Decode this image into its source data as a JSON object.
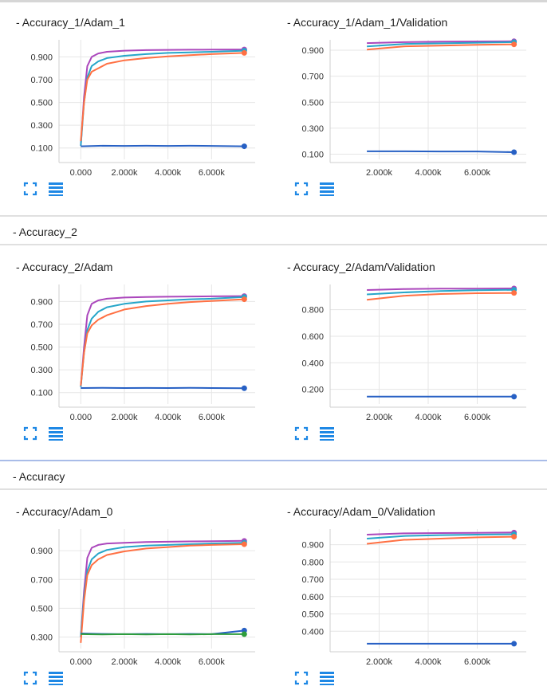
{
  "groups": [
    {
      "title": "- Accuracy_2"
    },
    {
      "title": "- Accuracy"
    }
  ],
  "colors": {
    "purple": "#ab47bc",
    "teal": "#26a6c9",
    "orange": "#ff7043",
    "blue": "#2760c4",
    "green": "#2e9d3c"
  },
  "icons": [
    "fullscreen-icon",
    "toggle-data-icon"
  ],
  "chart_data": [
    {
      "type": "line",
      "title": "- Accuracy_1/Adam_1",
      "xlim": [
        -1000,
        8000
      ],
      "ylim": [
        0.0,
        1.05
      ],
      "xticks": [
        0,
        2000,
        4000,
        6000
      ],
      "xticklabels": [
        "0.000",
        "2.000k",
        "4.000k",
        "6.000k"
      ],
      "yticks": [
        0.1,
        0.3,
        0.5,
        0.7,
        0.9
      ],
      "yticklabels": [
        "0.100",
        "0.300",
        "0.500",
        "0.700",
        "0.900"
      ],
      "grid": true,
      "series": [
        {
          "color": "purple",
          "x": [
            0,
            150,
            300,
            500,
            800,
            1200,
            2000,
            3000,
            4000,
            5000,
            6000,
            7500
          ],
          "y": [
            0.12,
            0.55,
            0.82,
            0.9,
            0.93,
            0.945,
            0.955,
            0.96,
            0.962,
            0.963,
            0.964,
            0.965
          ]
        },
        {
          "color": "teal",
          "x": [
            0,
            150,
            300,
            500,
            800,
            1200,
            2000,
            3000,
            4000,
            5000,
            6000,
            7500
          ],
          "y": [
            0.12,
            0.5,
            0.72,
            0.82,
            0.86,
            0.89,
            0.91,
            0.925,
            0.935,
            0.94,
            0.945,
            0.955
          ]
        },
        {
          "color": "orange",
          "x": [
            0,
            150,
            300,
            500,
            800,
            1200,
            2000,
            3000,
            4000,
            5000,
            6000,
            7500
          ],
          "y": [
            0.16,
            0.5,
            0.7,
            0.77,
            0.8,
            0.84,
            0.87,
            0.89,
            0.905,
            0.915,
            0.925,
            0.935
          ]
        },
        {
          "color": "blue",
          "x": [
            0,
            1000,
            2000,
            3000,
            4000,
            5000,
            6000,
            7500
          ],
          "y": [
            0.115,
            0.12,
            0.118,
            0.12,
            0.118,
            0.12,
            0.118,
            0.115
          ]
        }
      ]
    },
    {
      "type": "line",
      "title": "- Accuracy_1/Adam_1/Validation",
      "xlim": [
        0,
        8000
      ],
      "ylim": [
        0.06,
        0.98
      ],
      "xticks": [
        2000,
        4000,
        6000
      ],
      "xticklabels": [
        "2.000k",
        "4.000k",
        "6.000k"
      ],
      "yticks": [
        0.1,
        0.3,
        0.5,
        0.7,
        0.9
      ],
      "yticklabels": [
        "0.100",
        "0.300",
        "0.500",
        "0.700",
        "0.900"
      ],
      "grid": true,
      "series": [
        {
          "color": "purple",
          "x": [
            1500,
            3000,
            4500,
            6000,
            7500
          ],
          "y": [
            0.955,
            0.962,
            0.966,
            0.968,
            0.969
          ]
        },
        {
          "color": "teal",
          "x": [
            1500,
            3000,
            4500,
            6000,
            7500
          ],
          "y": [
            0.93,
            0.948,
            0.953,
            0.958,
            0.962
          ]
        },
        {
          "color": "orange",
          "x": [
            1500,
            3000,
            4500,
            6000,
            7500
          ],
          "y": [
            0.905,
            0.93,
            0.936,
            0.942,
            0.945
          ]
        },
        {
          "color": "blue",
          "x": [
            1500,
            3000,
            4500,
            6000,
            7500
          ],
          "y": [
            0.122,
            0.122,
            0.121,
            0.121,
            0.115
          ]
        }
      ]
    },
    {
      "type": "line",
      "title": "- Accuracy_2/Adam",
      "xlim": [
        -1000,
        8000
      ],
      "ylim": [
        0.0,
        1.05
      ],
      "xticks": [
        0,
        2000,
        4000,
        6000
      ],
      "xticklabels": [
        "0.000",
        "2.000k",
        "4.000k",
        "6.000k"
      ],
      "yticks": [
        0.1,
        0.3,
        0.5,
        0.7,
        0.9
      ],
      "yticklabels": [
        "0.100",
        "0.300",
        "0.500",
        "0.700",
        "0.900"
      ],
      "grid": true,
      "series": [
        {
          "color": "purple",
          "x": [
            0,
            150,
            300,
            500,
            800,
            1200,
            2000,
            3000,
            4000,
            5000,
            6000,
            7500
          ],
          "y": [
            0.15,
            0.5,
            0.78,
            0.88,
            0.91,
            0.925,
            0.935,
            0.94,
            0.942,
            0.944,
            0.946,
            0.948
          ]
        },
        {
          "color": "teal",
          "x": [
            0,
            150,
            300,
            500,
            800,
            1200,
            2000,
            3000,
            4000,
            5000,
            6000,
            7500
          ],
          "y": [
            0.15,
            0.45,
            0.65,
            0.75,
            0.81,
            0.85,
            0.88,
            0.9,
            0.91,
            0.92,
            0.925,
            0.94
          ]
        },
        {
          "color": "orange",
          "x": [
            0,
            150,
            300,
            500,
            800,
            1200,
            2000,
            3000,
            4000,
            5000,
            6000,
            7500
          ],
          "y": [
            0.16,
            0.45,
            0.62,
            0.69,
            0.74,
            0.78,
            0.83,
            0.86,
            0.88,
            0.895,
            0.905,
            0.92
          ]
        },
        {
          "color": "blue",
          "x": [
            0,
            1000,
            2000,
            3000,
            4000,
            5000,
            6000,
            7500
          ],
          "y": [
            0.14,
            0.142,
            0.14,
            0.141,
            0.14,
            0.142,
            0.14,
            0.138
          ]
        }
      ]
    },
    {
      "type": "line",
      "title": "- Accuracy_2/Adam/Validation",
      "xlim": [
        0,
        8000
      ],
      "ylim": [
        0.09,
        0.99
      ],
      "xticks": [
        2000,
        4000,
        6000
      ],
      "xticklabels": [
        "2.000k",
        "4.000k",
        "6.000k"
      ],
      "yticks": [
        0.2,
        0.4,
        0.6,
        0.8
      ],
      "yticklabels": [
        "0.200",
        "0.400",
        "0.600",
        "0.800"
      ],
      "grid": true,
      "series": [
        {
          "color": "purple",
          "x": [
            1500,
            3000,
            4500,
            6000,
            7500
          ],
          "y": [
            0.948,
            0.955,
            0.958,
            0.958,
            0.96
          ]
        },
        {
          "color": "teal",
          "x": [
            1500,
            3000,
            4500,
            6000,
            7500
          ],
          "y": [
            0.915,
            0.93,
            0.94,
            0.946,
            0.95
          ]
        },
        {
          "color": "orange",
          "x": [
            1500,
            3000,
            4500,
            6000,
            7500
          ],
          "y": [
            0.875,
            0.905,
            0.918,
            0.924,
            0.926
          ]
        },
        {
          "color": "blue",
          "x": [
            1500,
            3000,
            4500,
            6000,
            7500
          ],
          "y": [
            0.145,
            0.145,
            0.145,
            0.145,
            0.145
          ]
        }
      ]
    },
    {
      "type": "line",
      "title": "- Accuracy/Adam_0",
      "xlim": [
        -1000,
        8000
      ],
      "ylim": [
        0.22,
        1.05
      ],
      "xticks": [
        0,
        2000,
        4000,
        6000
      ],
      "xticklabels": [
        "0.000",
        "2.000k",
        "4.000k",
        "6.000k"
      ],
      "yticks": [
        0.3,
        0.5,
        0.7,
        0.9
      ],
      "yticklabels": [
        "0.300",
        "0.500",
        "0.700",
        "0.900"
      ],
      "grid": true,
      "series": [
        {
          "color": "purple",
          "x": [
            0,
            150,
            300,
            500,
            800,
            1200,
            2000,
            3000,
            4000,
            5000,
            6000,
            7500
          ],
          "y": [
            0.3,
            0.62,
            0.85,
            0.92,
            0.94,
            0.95,
            0.955,
            0.96,
            0.962,
            0.964,
            0.966,
            0.968
          ]
        },
        {
          "color": "teal",
          "x": [
            0,
            150,
            300,
            500,
            800,
            1200,
            2000,
            3000,
            4000,
            5000,
            6000,
            7500
          ],
          "y": [
            0.3,
            0.58,
            0.76,
            0.84,
            0.88,
            0.905,
            0.925,
            0.935,
            0.94,
            0.945,
            0.95,
            0.955
          ]
        },
        {
          "color": "orange",
          "x": [
            0,
            150,
            300,
            500,
            800,
            1200,
            2000,
            3000,
            4000,
            5000,
            6000,
            7500
          ],
          "y": [
            0.26,
            0.55,
            0.73,
            0.8,
            0.84,
            0.87,
            0.895,
            0.915,
            0.925,
            0.935,
            0.94,
            0.945
          ]
        },
        {
          "color": "blue",
          "x": [
            0,
            1000,
            2000,
            3000,
            4000,
            5000,
            6000,
            7500
          ],
          "y": [
            0.325,
            0.322,
            0.32,
            0.322,
            0.32,
            0.322,
            0.32,
            0.345
          ]
        },
        {
          "color": "green",
          "x": [
            0,
            1000,
            2000,
            3000,
            4000,
            5000,
            6000,
            7500
          ],
          "y": [
            0.32,
            0.318,
            0.32,
            0.318,
            0.32,
            0.318,
            0.32,
            0.32
          ]
        }
      ]
    },
    {
      "type": "line",
      "title": "- Accuracy/Adam_0/Validation",
      "xlim": [
        0,
        8000
      ],
      "ylim": [
        0.3,
        0.99
      ],
      "xticks": [
        2000,
        4000,
        6000
      ],
      "xticklabels": [
        "2.000k",
        "4.000k",
        "6.000k"
      ],
      "yticks": [
        0.4,
        0.5,
        0.6,
        0.7,
        0.8,
        0.9
      ],
      "yticklabels": [
        "0.400",
        "0.500",
        "0.600",
        "0.700",
        "0.800",
        "0.900"
      ],
      "grid": true,
      "series": [
        {
          "color": "purple",
          "x": [
            1500,
            3000,
            4500,
            6000,
            7500
          ],
          "y": [
            0.958,
            0.965,
            0.967,
            0.968,
            0.97
          ]
        },
        {
          "color": "teal",
          "x": [
            1500,
            3000,
            4500,
            6000,
            7500
          ],
          "y": [
            0.935,
            0.95,
            0.955,
            0.958,
            0.96
          ]
        },
        {
          "color": "orange",
          "x": [
            1500,
            3000,
            4500,
            6000,
            7500
          ],
          "y": [
            0.905,
            0.928,
            0.935,
            0.942,
            0.946
          ]
        },
        {
          "color": "blue",
          "x": [
            1500,
            3000,
            4500,
            6000,
            7500
          ],
          "y": [
            0.328,
            0.328,
            0.328,
            0.328,
            0.328
          ]
        }
      ]
    }
  ]
}
